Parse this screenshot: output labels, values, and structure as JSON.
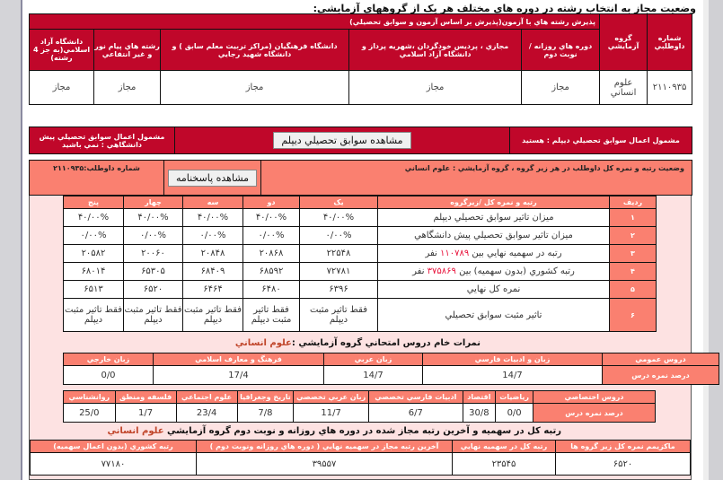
{
  "title": "وضعيت مجاز به انتخاب رشته در دوره هاي مختلف هر يک از گروههاي آزمايشي:",
  "eligibility": {
    "headers": {
      "candidate_no": "شماره داوطلبي",
      "group": "گروه آزمايشي",
      "accept_group": "پذيرش رشته هاي با آزمون(پذيرش بر اساس آزمون و سوابق تحصيلي)",
      "daily": "دوره هاي روزانه / نوبت دوم",
      "virtual": "مجازي ، پرديس خودگردان ،شهريه پرداز و دانشگاه آزاد اسلامي",
      "farhangian": "دانشگاه فرهنگيان (مراکز تربيت معلم سابق ) و دانشگاه شهيد رجايي",
      "payamnoor": "رشته هاي پيام نور و غير انتفاعي",
      "azad": "دانشگاه آزاد اسلامي(به جز 4 رشته)"
    },
    "row": {
      "candidate_no": "۲۱۱۰۹۳۵",
      "group": "علوم انساني",
      "daily": "مجاز",
      "virtual": "مجاز",
      "farhangian": "مجاز",
      "payamnoor": "مجاز",
      "azad": "مجاز"
    }
  },
  "records": {
    "diploma": "مشمول اعمال سوابق تحصيلي ديپلم : هستيد",
    "view_button": "مشاهده سوابق تحصيلي ديپلم",
    "preuni": "مشمول اعمال سوابق تحصيلي پيش دانشگاهي : نمي باشيد"
  },
  "rank_section": {
    "status_label": "وضعيت رتبه و نمره کل داوطلب در هر زير گروه ، گروه آزمايشي :",
    "status_group": "علوم انساني",
    "answer_button": "مشاهده پاسخنامه",
    "candidate_label": "شماره داوطلب:۲۱۱۰۹۳۵",
    "headers": [
      "رديف",
      "رتبه و نمره کل /زيرگروه",
      "يک",
      "دو",
      "سه",
      "چهار",
      "پنج"
    ],
    "rows": [
      {
        "n": "۱",
        "label": "ميزان تاثير سوابق تحصيلي ديپلم",
        "vals": [
          "۴۰/۰۰%",
          "۴۰/۰۰%",
          "۴۰/۰۰%",
          "۴۰/۰۰%",
          "۴۰/۰۰%"
        ]
      },
      {
        "n": "۲",
        "label": "ميزان تاثير سوابق تحصيلي پيش دانشگاهي",
        "vals": [
          "۰/۰۰%",
          "۰/۰۰%",
          "۰/۰۰%",
          "۰/۰۰%",
          "۰/۰۰%"
        ]
      },
      {
        "n": "۳",
        "label_a": "رتبه در سهميه نهايي بين",
        "label_num": "۱۱۰۷۸۹",
        "label_b": "نفر",
        "vals": [
          "۲۲۵۴۸",
          "۲۰۸۶۸",
          "۲۰۸۴۸",
          "۲۰۰۶۰",
          "۲۰۵۸۲"
        ]
      },
      {
        "n": "۴",
        "label_a": "رتبه کشوري (بدون سهميه) بين",
        "label_num": "۳۷۵۸۶۹",
        "label_b": "نفر",
        "vals": [
          "۷۲۷۸۱",
          "۶۸۵۹۲",
          "۶۸۴۰۹",
          "۶۵۳۰۵",
          "۶۸۰۱۴"
        ]
      },
      {
        "n": "۵",
        "label": "نمره کل نهايي",
        "vals": [
          "۶۳۹۶",
          "۶۴۸۰",
          "۶۴۶۴",
          "۶۵۲۰",
          "۶۵۱۳"
        ]
      },
      {
        "n": "۶",
        "label": "تاثير مثبت سوابق تحصيلي",
        "vals": [
          "فقط تاثير مثبت ديپلم",
          "فقط تاثير مثبت ديپلم",
          "فقط تاثير مثبت ديپلم",
          "فقط تاثير مثبت ديپلم",
          "فقط تاثير مثبت ديپلم"
        ]
      }
    ]
  },
  "raw_scores": {
    "title": "نمرات خام دروس امتحاني گروه آزمايشي :",
    "group": "علوم انساني",
    "general": {
      "label": "دروس عمومي",
      "row_label": "درصد نمره درس",
      "headers": [
        "زبان و ادبيات فارسي",
        "زبان عربي",
        "فرهنگ و معارف اسلامي",
        "زبان خارجي"
      ],
      "values": [
        "14/7",
        "14/7",
        "17/4",
        "0/0"
      ]
    },
    "specialized": {
      "label": "دروس اختصاصي",
      "row_label": "درصد نمره درس",
      "headers": [
        "رياضيات",
        "اقتصاد",
        "ادبيات فارسي تخصصي",
        "زبان عربي تخصصي",
        "تاريخ وجغرافيا",
        "علوم اجتماعي",
        "فلسفه ومنطق",
        "روانشناسي"
      ],
      "values": [
        "0/0",
        "30/8",
        "6/7",
        "11/7",
        "7/8",
        "23/4",
        "1/7",
        "25/0"
      ]
    }
  },
  "final": {
    "title": "رتبه کل در سهميه و آخرين رتبه مجاز شده در دوره هاي روزانه و نوبت دوم گروه آزمايشي",
    "group": "علوم انساني",
    "headers": [
      "ماکزيمم نمره کل زير گروه ها",
      "رتبه کل در سهميه نهايي",
      "آخرين رتبه مجاز در سهميه نهايي ( دوره هاي روزانه ونوبت دوم )",
      "رتبه کشوري (بدون اعمال سهميه)"
    ],
    "values": [
      "۶۵۲۰",
      "۲۳۵۴۵",
      "۳۹۵۵۷",
      "۷۷۱۸۰"
    ]
  },
  "colors": {
    "dark_red": "#c0072a",
    "salmon": "#fa8070",
    "pink_bg": "#fde2e2",
    "highlight": "#e8143c"
  }
}
